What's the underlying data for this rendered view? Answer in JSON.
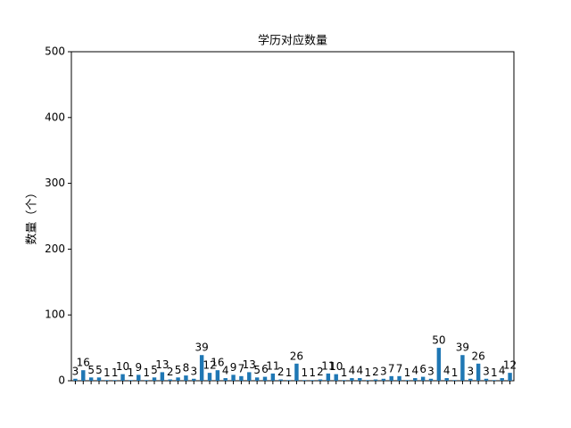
{
  "chart_data": {
    "type": "bar",
    "title": "学历对应数量",
    "ylabel": "数量（个）",
    "categories": [
      null,
      null,
      null,
      null,
      null,
      null,
      null,
      null,
      null,
      null,
      null,
      null,
      null,
      null,
      null,
      null,
      null,
      null,
      null,
      null,
      null,
      null,
      null,
      null,
      null,
      null,
      null,
      null,
      null,
      null,
      null,
      null,
      null,
      null,
      null,
      null,
      null,
      null,
      null,
      null,
      null,
      null,
      null,
      null,
      null,
      null,
      null,
      null,
      null,
      null,
      null,
      null,
      null,
      null,
      null,
      null
    ],
    "values": [
      3,
      16,
      5,
      5,
      1,
      1,
      10,
      1,
      9,
      1,
      5,
      13,
      2,
      5,
      8,
      3,
      39,
      12,
      16,
      4,
      9,
      7,
      13,
      5,
      6,
      11,
      2,
      1,
      26,
      1,
      1,
      2,
      11,
      10,
      1,
      4,
      4,
      1,
      2,
      3,
      7,
      7,
      1,
      4,
      6,
      3,
      50,
      4,
      1,
      39,
      3,
      26,
      3,
      1,
      4,
      12
    ],
    "color": "#1f77b4",
    "ylim": [
      0,
      500
    ],
    "yticks": [
      0,
      100,
      200,
      300,
      400,
      500
    ],
    "grid": false
  }
}
